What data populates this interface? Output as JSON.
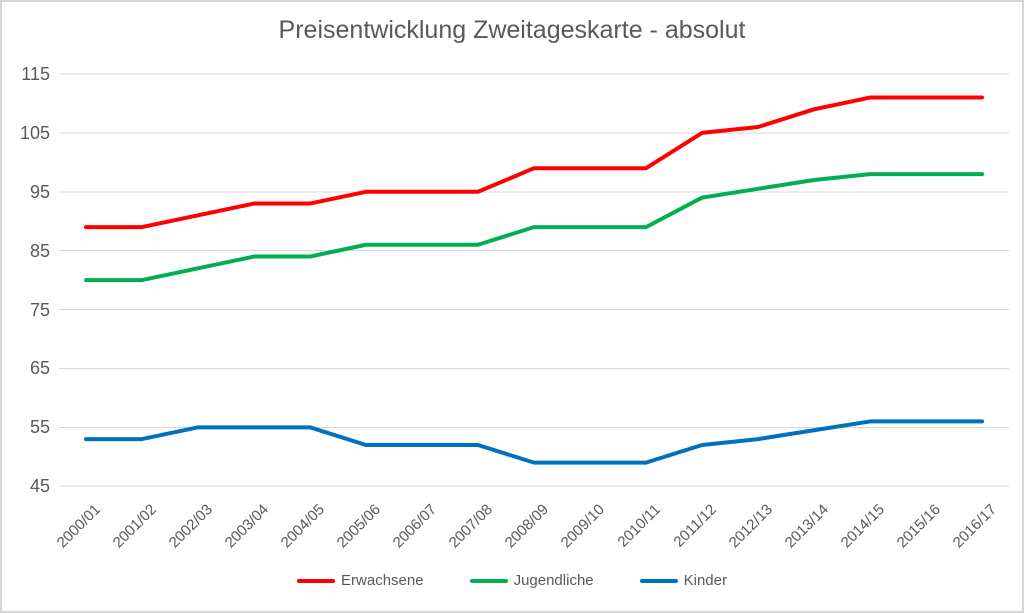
{
  "chart_data": {
    "type": "line",
    "title": "Preisentwicklung Zweitageskarte - absolut",
    "categories": [
      "2000/01",
      "2001/02",
      "2002/03",
      "2003/04",
      "2004/05",
      "2005/06",
      "2006/07",
      "2007/08",
      "2008/09",
      "2009/10",
      "2010/11",
      "2011/12",
      "2012/13",
      "2013/14",
      "2014/15",
      "2015/16",
      "2016/17"
    ],
    "series": [
      {
        "name": "Erwachsene",
        "color": "#ff0000",
        "values": [
          89,
          89,
          91,
          93,
          93,
          95,
          95,
          95,
          99,
          99,
          99,
          105,
          106,
          109,
          111,
          111,
          111
        ]
      },
      {
        "name": "Jugendliche",
        "color": "#00b050",
        "values": [
          80,
          80,
          82,
          84,
          84,
          86,
          86,
          86,
          89,
          89,
          89,
          94,
          95.5,
          97,
          98,
          98,
          98
        ]
      },
      {
        "name": "Kinder",
        "color": "#0070c0",
        "values": [
          53,
          53,
          55,
          55,
          55,
          52,
          52,
          52,
          49,
          49,
          49,
          52,
          53,
          54.5,
          56,
          56,
          56
        ]
      }
    ],
    "xlabel": "",
    "ylabel": "",
    "ylim": [
      45,
      115
    ],
    "yticks": [
      115,
      105,
      95,
      85,
      75,
      65,
      55,
      45
    ],
    "grid": "horizontal",
    "legend_position": "bottom",
    "colors": {
      "axis_text": "#595959",
      "title_text": "#595959",
      "gridline": "#d9d9d9"
    }
  }
}
